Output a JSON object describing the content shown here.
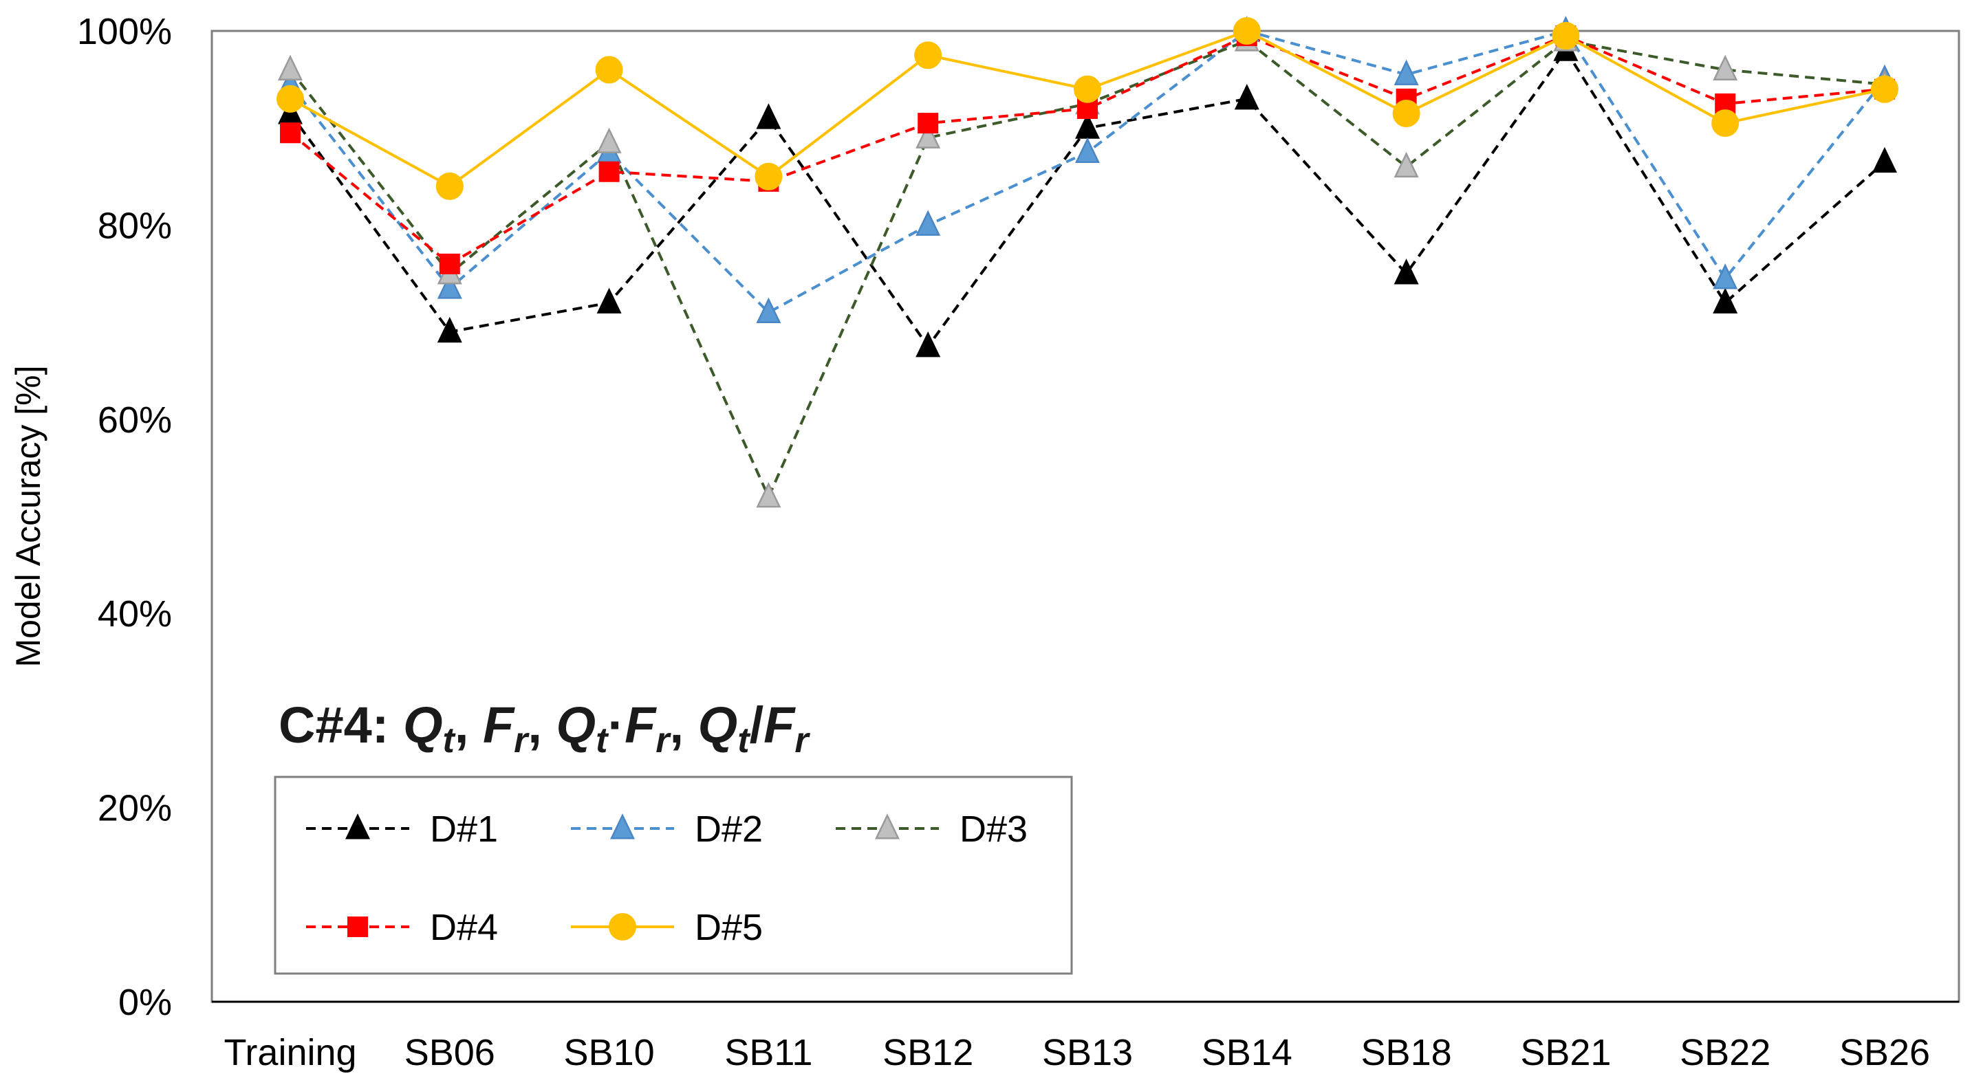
{
  "chart_data": {
    "type": "line",
    "title": "",
    "xlabel": "",
    "ylabel": "Model Accuracy [%]",
    "ylim": [
      0,
      100
    ],
    "yticks": [
      0,
      20,
      40,
      60,
      80,
      100
    ],
    "ytick_labels": [
      "0%",
      "20%",
      "40%",
      "60%",
      "80%",
      "100%"
    ],
    "categories": [
      "Training",
      "SB06",
      "SB10",
      "SB11",
      "SB12",
      "SB13",
      "SB14",
      "SB18",
      "SB21",
      "SB22",
      "SB26"
    ],
    "grid": false,
    "legend_position": "bottom-left",
    "annotation": {
      "prefix": "C#4: ",
      "terms": [
        {
          "sym": "Q",
          "sub": "t",
          "after": ", "
        },
        {
          "sym": "F",
          "sub": "r",
          "after": ", "
        },
        {
          "sym": "Q",
          "sub": "t",
          "after": "·"
        },
        {
          "sym": "F",
          "sub": "r",
          "after": ", "
        },
        {
          "sym": "Q",
          "sub": "t",
          "after": "/"
        },
        {
          "sym": "F",
          "sub": "r",
          "after": ""
        }
      ]
    },
    "series": [
      {
        "name": "D#1",
        "values": [
          91.5,
          69,
          72,
          91,
          67.5,
          90,
          93,
          75,
          98,
          72,
          86.5
        ],
        "color": "#000000",
        "dashed": true,
        "marker": "triangle",
        "marker_fill": "#000000"
      },
      {
        "name": "D#2",
        "values": [
          94.5,
          73.5,
          87.5,
          71,
          80,
          87.5,
          100,
          95.5,
          100,
          74.5,
          95
        ],
        "color": "#4a90d0",
        "dashed": true,
        "marker": "triangle",
        "marker_fill": "#5b9bd5"
      },
      {
        "name": "D#3",
        "values": [
          96,
          75,
          88.5,
          52,
          89,
          92.5,
          99,
          86,
          99,
          96,
          94.5
        ],
        "color": "#3d5a2a",
        "dashed": true,
        "marker": "triangle",
        "marker_fill": "#bfbfbf"
      },
      {
        "name": "D#4",
        "values": [
          89.5,
          76,
          85.5,
          84.5,
          90.5,
          92,
          99.5,
          93,
          99.5,
          92.5,
          94
        ],
        "color": "#ff0000",
        "dashed": true,
        "marker": "square",
        "marker_fill": "#ff0000"
      },
      {
        "name": "D#5",
        "values": [
          93,
          84,
          96,
          85,
          97.5,
          94,
          100,
          91.5,
          99.5,
          90.5,
          94
        ],
        "color": "#ffc000",
        "dashed": false,
        "marker": "circle",
        "marker_fill": "#ffc000"
      }
    ]
  }
}
